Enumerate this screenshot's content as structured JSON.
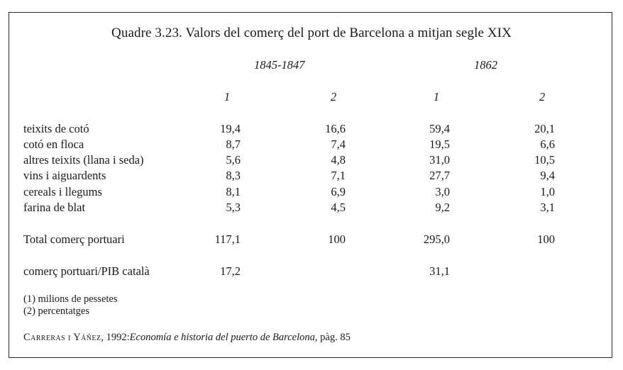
{
  "title": "Quadre 3.23. Valors del comerç del port de Barcelona a mitjan segle XIX",
  "periods": [
    "1845-1847",
    "1862"
  ],
  "column_headers": [
    "1",
    "2",
    "1",
    "2"
  ],
  "rows": [
    {
      "label": "teixits de cotó",
      "values": [
        "19,4",
        "16,6",
        "59,4",
        "20,1"
      ]
    },
    {
      "label": "cotó en floca",
      "values": [
        "8,7",
        "7,4",
        "19,5",
        "6,6"
      ]
    },
    {
      "label": "altres teixits (llana i seda)",
      "values": [
        "5,6",
        "4,8",
        "31,0",
        "10,5"
      ]
    },
    {
      "label": "vins i aiguardents",
      "values": [
        "8,3",
        "7,1",
        "27,7",
        "9,4"
      ]
    },
    {
      "label": "cereals i llegums",
      "values": [
        "8,1",
        "6,9",
        "3,0",
        "1,0"
      ]
    },
    {
      "label": "farina de blat",
      "values": [
        "5,3",
        "4,5",
        "9,2",
        "3,1"
      ]
    }
  ],
  "total": {
    "label": "Total comerç portuari",
    "values": [
      "117,1",
      "100",
      "295,0",
      "100"
    ]
  },
  "ratio": {
    "label": "comerç portuari/PIB català",
    "values": [
      "17,2",
      "",
      "31,1",
      ""
    ]
  },
  "notes": [
    "(1) milions de pessetes",
    "(2) percentatges"
  ],
  "source": {
    "authors": "Carreras i Yáñez",
    "year_prefix": ", 1992:",
    "work": "Economía e historia del puerto de Barcelona",
    "suffix": ", pàg. 85"
  }
}
